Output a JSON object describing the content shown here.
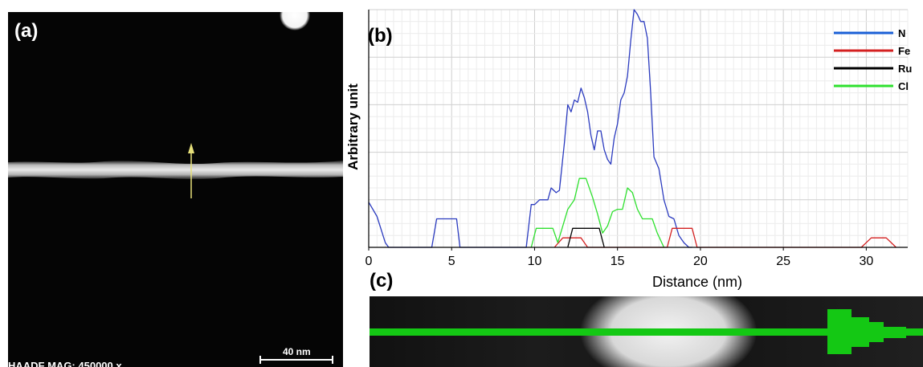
{
  "panel_a": {
    "label": "(a)",
    "bottom_text": "HAADF MAG: 450000 x",
    "scale_label": "40 nm"
  },
  "panel_c": {
    "label": "(c)"
  },
  "chart_data": {
    "type": "line",
    "panel_label": "(b)",
    "xlabel": "Distance (nm)",
    "ylabel": "Arbitrary unit",
    "xlim": [
      0,
      32.5
    ],
    "ylim": [
      0,
      1.0
    ],
    "xticks": [
      0,
      5,
      10,
      15,
      20,
      25,
      30
    ],
    "grid": true,
    "legend_position": "top-right",
    "colors": {
      "N": "#2b3bbf",
      "Fe": "#d42020",
      "Ru": "#000000",
      "Cl": "#2ee02e"
    },
    "legend_colors": {
      "N": "#1a5fd6",
      "Fe": "#d42020",
      "Ru": "#000000",
      "Cl": "#2ee02e"
    },
    "series": [
      {
        "name": "N",
        "x": [
          0,
          0.5,
          1.0,
          1.2,
          3.8,
          4.1,
          5.3,
          5.5,
          9.5,
          9.8,
          10.0,
          10.3,
          10.8,
          11.0,
          11.3,
          11.5,
          11.8,
          12.0,
          12.2,
          12.4,
          12.6,
          12.8,
          13.0,
          13.2,
          13.4,
          13.6,
          13.8,
          14.0,
          14.2,
          14.4,
          14.6,
          14.8,
          15.0,
          15.2,
          15.4,
          15.6,
          15.8,
          16.0,
          16.2,
          16.4,
          16.6,
          16.8,
          17.0,
          17.2,
          17.5,
          17.8,
          18.1,
          18.4,
          18.7,
          19.0,
          19.3,
          19.5
        ],
        "values": [
          0.19,
          0.13,
          0.02,
          0.0,
          0.0,
          0.12,
          0.12,
          0.0,
          0.0,
          0.18,
          0.18,
          0.2,
          0.2,
          0.25,
          0.23,
          0.24,
          0.44,
          0.6,
          0.57,
          0.62,
          0.61,
          0.67,
          0.63,
          0.57,
          0.47,
          0.41,
          0.49,
          0.49,
          0.41,
          0.37,
          0.35,
          0.46,
          0.52,
          0.62,
          0.65,
          0.72,
          0.87,
          1.0,
          0.98,
          0.95,
          0.95,
          0.88,
          0.65,
          0.38,
          0.33,
          0.2,
          0.13,
          0.12,
          0.05,
          0.02,
          0.0,
          0.0
        ]
      },
      {
        "name": "Fe",
        "x": [
          11.2,
          11.7,
          12.8,
          13.2,
          18.0,
          18.3,
          19.5,
          19.8,
          29.7,
          30.3,
          31.2,
          31.8
        ],
        "values": [
          0.0,
          0.04,
          0.04,
          0.0,
          0.0,
          0.08,
          0.08,
          0.0,
          0.0,
          0.04,
          0.04,
          0.0
        ]
      },
      {
        "name": "Ru",
        "x": [
          12.0,
          12.3,
          13.9,
          14.2
        ],
        "values": [
          0.0,
          0.08,
          0.08,
          0.0
        ]
      },
      {
        "name": "Cl",
        "x": [
          9.8,
          10.1,
          11.1,
          11.4,
          11.7,
          12.0,
          12.4,
          12.7,
          13.1,
          13.5,
          13.8,
          14.1,
          14.4,
          14.7,
          15.0,
          15.3,
          15.6,
          15.9,
          16.2,
          16.5,
          17.1,
          17.4,
          17.8
        ],
        "values": [
          0.0,
          0.08,
          0.08,
          0.02,
          0.09,
          0.16,
          0.2,
          0.29,
          0.29,
          0.21,
          0.14,
          0.06,
          0.09,
          0.15,
          0.16,
          0.16,
          0.25,
          0.23,
          0.16,
          0.12,
          0.12,
          0.06,
          0.0
        ]
      }
    ]
  }
}
